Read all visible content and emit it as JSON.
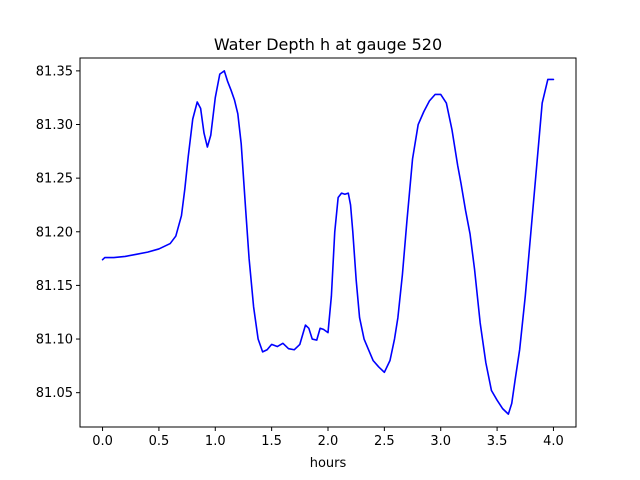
{
  "chart_data": {
    "type": "line",
    "title": "Water Depth h at gauge 520",
    "xlabel": "hours",
    "ylabel": "",
    "xlim": [
      -0.2,
      4.2
    ],
    "ylim": [
      81.018,
      81.362
    ],
    "x_ticks": [
      0.0,
      0.5,
      1.0,
      1.5,
      2.0,
      2.5,
      3.0,
      3.5,
      4.0
    ],
    "x_tick_labels": [
      "0.0",
      "0.5",
      "1.0",
      "1.5",
      "2.0",
      "2.5",
      "3.0",
      "3.5",
      "4.0"
    ],
    "y_ticks": [
      81.05,
      81.1,
      81.15,
      81.2,
      81.25,
      81.3,
      81.35
    ],
    "y_tick_labels": [
      "81.05",
      "81.10",
      "81.15",
      "81.20",
      "81.25",
      "81.30",
      "81.35"
    ],
    "grid": false,
    "series": [
      {
        "color": "#0000ff",
        "x": [
          0.0,
          0.02,
          0.1,
          0.2,
          0.3,
          0.4,
          0.5,
          0.6,
          0.65,
          0.7,
          0.73,
          0.76,
          0.8,
          0.84,
          0.87,
          0.9,
          0.93,
          0.96,
          1.0,
          1.04,
          1.08,
          1.11,
          1.14,
          1.17,
          1.2,
          1.23,
          1.27,
          1.3,
          1.34,
          1.38,
          1.42,
          1.46,
          1.5,
          1.55,
          1.6,
          1.65,
          1.7,
          1.75,
          1.8,
          1.83,
          1.86,
          1.9,
          1.93,
          1.96,
          2.0,
          2.03,
          2.06,
          2.09,
          2.12,
          2.15,
          2.18,
          2.2,
          2.22,
          2.25,
          2.28,
          2.32,
          2.36,
          2.4,
          2.45,
          2.5,
          2.55,
          2.59,
          2.62,
          2.66,
          2.7,
          2.75,
          2.8,
          2.85,
          2.9,
          2.95,
          3.0,
          3.05,
          3.1,
          3.15,
          3.18,
          3.22,
          3.26,
          3.3,
          3.35,
          3.4,
          3.45,
          3.5,
          3.55,
          3.6,
          3.63,
          3.66,
          3.7,
          3.75,
          3.8,
          3.85,
          3.9,
          3.95,
          4.0
        ],
        "y": [
          81.174,
          81.176,
          81.176,
          81.177,
          81.179,
          81.181,
          81.184,
          81.189,
          81.196,
          81.215,
          81.24,
          81.27,
          81.305,
          81.321,
          81.315,
          81.292,
          81.279,
          81.29,
          81.325,
          81.347,
          81.35,
          81.34,
          81.332,
          81.323,
          81.31,
          81.282,
          81.22,
          81.175,
          81.13,
          81.1,
          81.088,
          81.09,
          81.095,
          81.093,
          81.096,
          81.091,
          81.09,
          81.095,
          81.113,
          81.11,
          81.1,
          81.099,
          81.11,
          81.109,
          81.106,
          81.14,
          81.2,
          81.232,
          81.236,
          81.235,
          81.236,
          81.225,
          81.2,
          81.155,
          81.12,
          81.1,
          81.09,
          81.08,
          81.074,
          81.069,
          81.08,
          81.1,
          81.12,
          81.16,
          81.21,
          81.268,
          81.3,
          81.312,
          81.322,
          81.328,
          81.328,
          81.32,
          81.295,
          81.262,
          81.245,
          81.22,
          81.198,
          81.165,
          81.115,
          81.078,
          81.052,
          81.043,
          81.035,
          81.03,
          81.04,
          81.062,
          81.09,
          81.14,
          81.2,
          81.26,
          81.32,
          81.342,
          81.342
        ]
      }
    ]
  }
}
